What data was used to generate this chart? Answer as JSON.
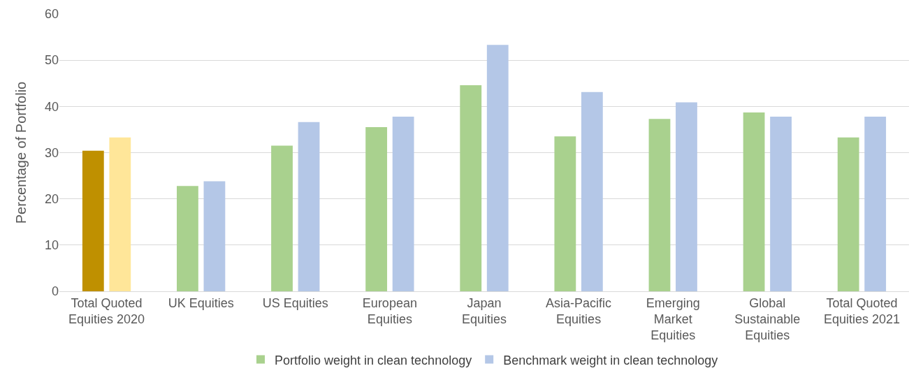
{
  "chart_data": {
    "type": "bar",
    "ylabel": "Percentage of Portfolio",
    "categories": [
      "Total Quoted Equities 2020",
      "UK Equities",
      "US Equities",
      "European Equities",
      "Japan Equities",
      "Asia-Pacific Equities",
      "Emerging Market Equities",
      "Global Sustainable Equities",
      "Total Quoted Equities 2021"
    ],
    "series": [
      {
        "name": "Portfolio weight in clean technology",
        "color": "#a9d18e",
        "colors": [
          "#bf9000",
          "#a9d18e",
          "#a9d18e",
          "#a9d18e",
          "#a9d18e",
          "#a9d18e",
          "#a9d18e",
          "#a9d18e",
          "#a9d18e"
        ],
        "values": [
          30.4,
          22.8,
          31.5,
          35.5,
          44.6,
          33.5,
          37.3,
          38.7,
          33.3
        ]
      },
      {
        "name": "Benchmark weight in clean technology",
        "color": "#b4c7e7",
        "colors": [
          "#ffe699",
          "#b4c7e7",
          "#b4c7e7",
          "#b4c7e7",
          "#b4c7e7",
          "#b4c7e7",
          "#b4c7e7",
          "#b4c7e7",
          "#b4c7e7"
        ],
        "values": [
          33.3,
          23.8,
          36.6,
          37.8,
          53.3,
          43.1,
          40.9,
          37.8,
          37.8
        ]
      }
    ],
    "ylim": [
      0,
      60
    ],
    "yticks": [
      0,
      10,
      20,
      30,
      40,
      50,
      60
    ],
    "grid": "y",
    "legend": "bottom"
  }
}
